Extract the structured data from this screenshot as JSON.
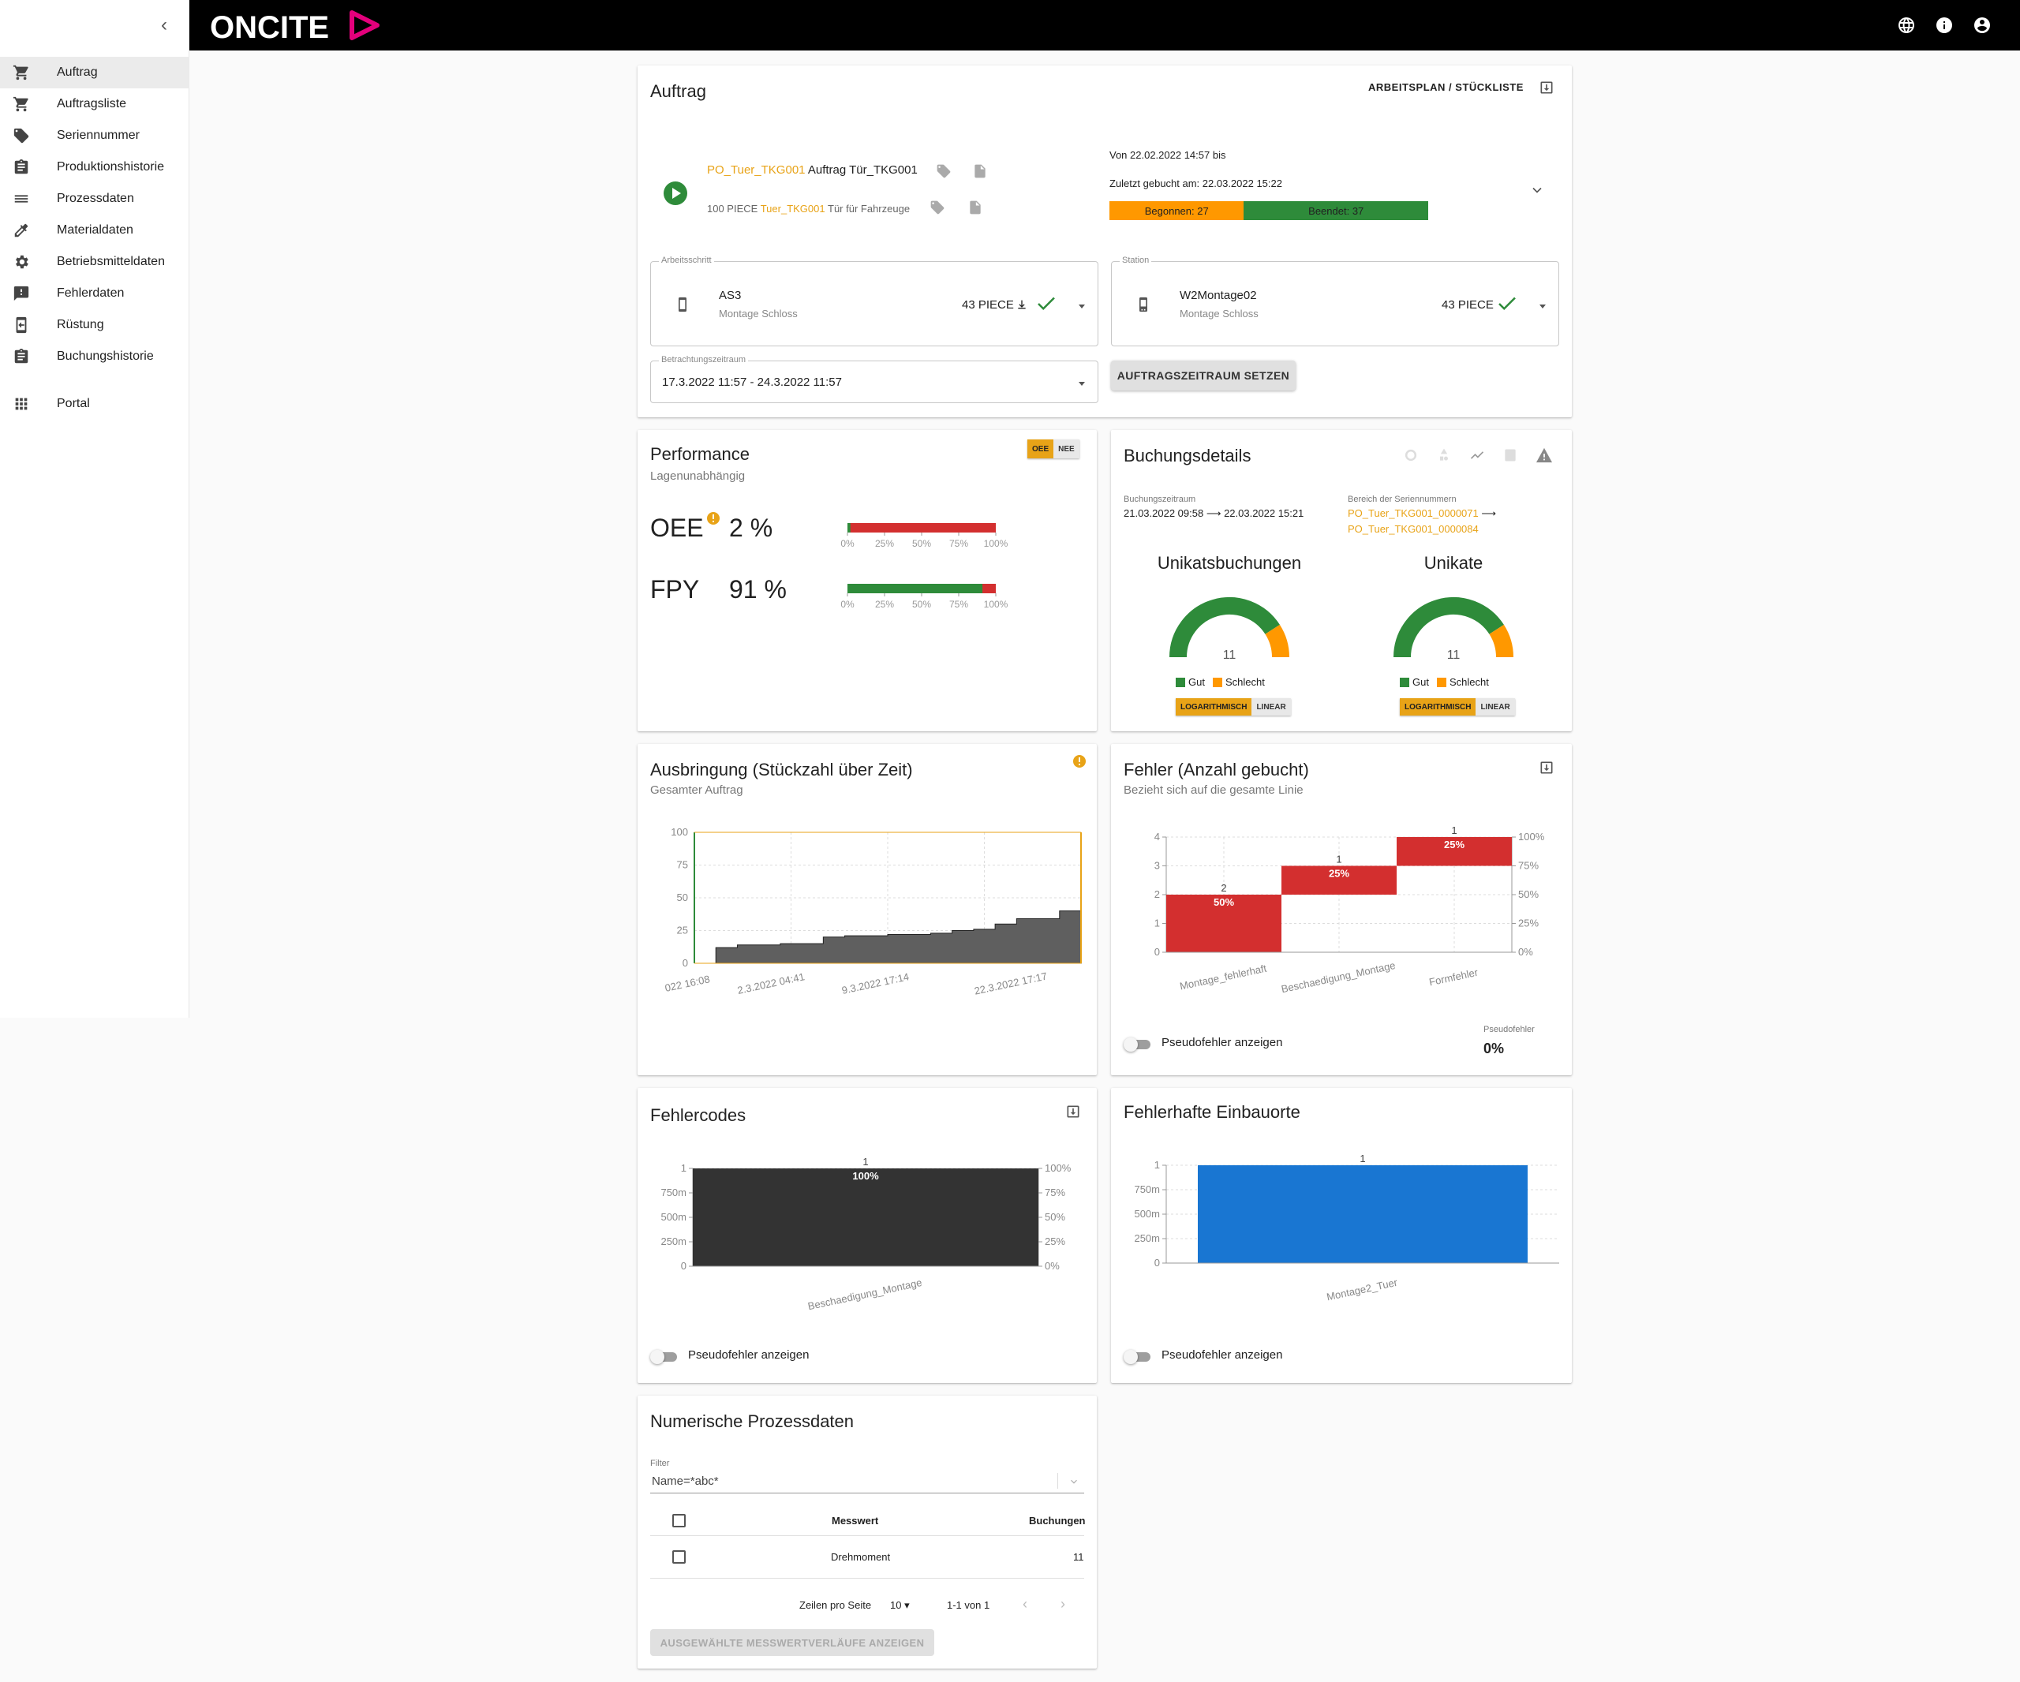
{
  "sidebar": {
    "items": [
      {
        "label": "Auftrag",
        "icon": "cart-icon"
      },
      {
        "label": "Auftragsliste",
        "icon": "cart-icon"
      },
      {
        "label": "Seriennummer",
        "icon": "tag-icon"
      },
      {
        "label": "Produktionshistorie",
        "icon": "clipboard-icon"
      },
      {
        "label": "Prozessdaten",
        "icon": "list-icon"
      },
      {
        "label": "Materialdaten",
        "icon": "dropper-icon"
      },
      {
        "label": "Betriebsmitteldaten",
        "icon": "gear-icon"
      },
      {
        "label": "Fehlerdaten",
        "icon": "feedback-icon"
      },
      {
        "label": "Rüstung",
        "icon": "setup-icon"
      },
      {
        "label": "Buchungshistorie",
        "icon": "clipboard-icon"
      }
    ],
    "portal": "Portal"
  },
  "header": {
    "logo": "ONCITE"
  },
  "colors": {
    "accent": "#e8a317",
    "green": "#2e8b3a",
    "red": "#d32f2f",
    "blue": "#1976d2",
    "orange": "#ff9800"
  },
  "auftrag": {
    "title": "Auftrag",
    "link": "ARBEITSPLAN / STÜCKLISTE",
    "order_id": "PO_Tuer_TKG001",
    "order_name": "Auftrag Tür_TKG001",
    "qty": "100 PIECE",
    "article_id": "Tuer_TKG001",
    "article_name": "Tür für Fahrzeuge",
    "from": "Von 22.02.2022 14:57 bis",
    "last_booked": "Zuletzt gebucht am: 22.03.2022 15:22",
    "started": "Begonnen: 27",
    "finished": "Beendet: 37",
    "started_n": 27,
    "finished_n": 37,
    "step_label": "Arbeitsschritt",
    "step_name": "AS3",
    "step_desc": "Montage Schloss",
    "step_qty": "43 PIECE",
    "station_label": "Station",
    "station_name": "W2Montage02",
    "station_desc": "Montage Schloss",
    "station_qty": "43 PIECE",
    "period_label": "Betrachtungszeitraum",
    "period_value": "17.3.2022 11:57 - 24.3.2022 11:57",
    "set_button": "AUFTRAGSZEITRAUM SETZEN"
  },
  "performance": {
    "title": "Performance",
    "subtitle": "Lagenunabhängig",
    "toggle_on": "OEE",
    "toggle_off": "NEE",
    "oee_label": "OEE",
    "oee_value": "2 %",
    "oee_pct": 2,
    "fpy_label": "FPY",
    "fpy_value": "91 %",
    "fpy_pct": 91,
    "ticks": [
      "0%",
      "25%",
      "50%",
      "75%",
      "100%"
    ]
  },
  "buchung": {
    "title": "Buchungsdetails",
    "period_label": "Buchungszeitraum",
    "period_value": "21.03.2022 09:58 ⟶ 22.03.2022 15:21",
    "serial_label": "Bereich der Seriennummern",
    "serial_from": "PO_Tuer_TKG001_0000071",
    "serial_arrow": "⟶",
    "serial_to": "PO_Tuer_TKG001_0000084",
    "g1_title": "Unikatsbuchungen",
    "g1_value": "11",
    "g1_good": 9,
    "g1_bad": 2,
    "g2_title": "Unikate",
    "g2_value": "11",
    "g2_good": 9,
    "g2_bad": 2,
    "legend_good": "Gut",
    "legend_bad": "Schlecht",
    "log": "LOGARITHMISCH",
    "lin": "LINEAR"
  },
  "ausbringung": {
    "title": "Ausbringung (Stückzahl über Zeit)",
    "subtitle": "Gesamter Auftrag",
    "y_ticks": [
      "100",
      "75",
      "50",
      "25",
      "0"
    ],
    "x_ticks": [
      "022 16:08",
      "2.3.2022 04:41",
      "9.3.2022 17:14",
      "22.3.2022 17:17"
    ]
  },
  "fehler": {
    "title": "Fehler (Anzahl gebucht)",
    "subtitle": "Bezieht sich auf die gesamte Linie",
    "toggle_label": "Pseudofehler anzeigen",
    "pseudo_label": "Pseudofehler",
    "pseudo_value": "0%"
  },
  "fehlercodes": {
    "title": "Fehlercodes",
    "toggle_label": "Pseudofehler anzeigen"
  },
  "einbau": {
    "title": "Fehlerhafte Einbauorte",
    "toggle_label": "Pseudofehler anzeigen"
  },
  "chart_data": [
    {
      "type": "line",
      "title": "Ausbringung (Stückzahl über Zeit)",
      "ylim": [
        0,
        100
      ],
      "x": [
        "022 16:08",
        "2.3.2022 04:41",
        "9.3.2022 17:14",
        "22.3.2022 17:17"
      ],
      "step_values": [
        0,
        12,
        14,
        14,
        15,
        15,
        20,
        21,
        21,
        22,
        22,
        23,
        25,
        26,
        30,
        34,
        34,
        40
      ]
    },
    {
      "type": "bar",
      "title": "Fehler (Anzahl gebucht)",
      "categories": [
        "Montage_fehlerhaft",
        "Beschaedigung_Montage",
        "Formfehler"
      ],
      "values": [
        2,
        1,
        1
      ],
      "percent_labels": [
        "50%",
        "25%",
        "25%"
      ],
      "cumulative": [
        50,
        75,
        100
      ],
      "ylim": [
        0,
        4
      ],
      "y_ticks": [
        "0",
        "1",
        "2",
        "3",
        "4"
      ],
      "y2_ticks": [
        "0%",
        "25%",
        "50%",
        "75%",
        "100%"
      ]
    },
    {
      "type": "bar",
      "title": "Fehlercodes",
      "categories": [
        "Beschaedigung_Montage"
      ],
      "values": [
        1
      ],
      "percent_labels": [
        "100%"
      ],
      "ylim": [
        0,
        1
      ],
      "y_ticks": [
        "0",
        "250m",
        "500m",
        "750m",
        "1"
      ],
      "y2_ticks": [
        "0%",
        "25%",
        "50%",
        "75%",
        "100%"
      ]
    },
    {
      "type": "bar",
      "title": "Fehlerhafte Einbauorte",
      "categories": [
        "Montage2_Tuer"
      ],
      "values": [
        1
      ],
      "ylim": [
        0,
        1
      ],
      "y_ticks": [
        "0",
        "250m",
        "500m",
        "750m",
        "1"
      ]
    }
  ],
  "prozess": {
    "title": "Numerische Prozessdaten",
    "filter_label": "Filter",
    "filter_value": "Name=*abc*",
    "col_value": "Messwert",
    "col_count": "Buchungen",
    "rows": [
      {
        "name": "Drehmoment",
        "count": "11"
      }
    ],
    "rows_per_page_label": "Zeilen pro Seite",
    "rows_per_page": "10",
    "page_info": "1-1 von 1",
    "show_button": "AUSGEWÄHLTE MESSWERTVERLÄUFE ANZEIGEN"
  }
}
